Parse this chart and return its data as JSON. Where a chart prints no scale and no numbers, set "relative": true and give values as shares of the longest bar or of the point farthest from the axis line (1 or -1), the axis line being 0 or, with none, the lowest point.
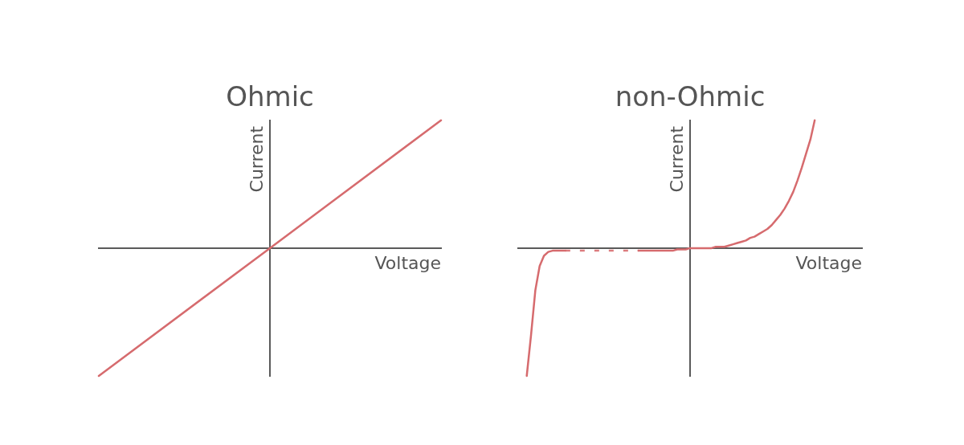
{
  "chart_data": [
    {
      "type": "line",
      "title": "Ohmic",
      "xlabel": "Voltage",
      "ylabel": "Current",
      "relative": true,
      "marker": "none",
      "categories": [
        null,
        null,
        null
      ],
      "values": [
        -1,
        0,
        1
      ],
      "color": "#d66b6e"
    },
    {
      "type": "line",
      "title": "non-Ohmic",
      "xlabel": "Voltage",
      "ylabel": "Current",
      "relative": true,
      "marker": "none",
      "categories": [
        null,
        null,
        null,
        null,
        null,
        null,
        null,
        null,
        null,
        null,
        null,
        null,
        null,
        null,
        null,
        null,
        null,
        null,
        null,
        null,
        null,
        null,
        null,
        null,
        null,
        null,
        null,
        null,
        null,
        null,
        null,
        null,
        null,
        null,
        null,
        null,
        null,
        null,
        null,
        null,
        null,
        null,
        null,
        null,
        null,
        null,
        null,
        null,
        null,
        null,
        null,
        null,
        null,
        null,
        null,
        null,
        null,
        null,
        null,
        null,
        null,
        null,
        null,
        null,
        null,
        null,
        null,
        null,
        null,
        null,
        null,
        null,
        null,
        null,
        null,
        null,
        null,
        null,
        null,
        null,
        null
      ],
      "series": [
        {
          "color": "#d66b6e",
          "line_style": "solid",
          "values": [
            null,
            null,
            -1,
            -0.68,
            -0.33,
            -0.14,
            -0.06,
            -0.03,
            -0.02,
            -0.02,
            -0.02,
            -0.02,
            null,
            null,
            null,
            null,
            null,
            null,
            null,
            null,
            null,
            null,
            null,
            null,
            null,
            null,
            null,
            null,
            -0.02,
            -0.02,
            -0.02,
            -0.02,
            -0.02,
            -0.02,
            -0.02,
            -0.02,
            -0.02,
            -0.01,
            -0.01,
            -0.01,
            0,
            0,
            0,
            0,
            0,
            0,
            0.01,
            0.01,
            0.01,
            0.02,
            0.03,
            0.04,
            0.05,
            0.06,
            0.08,
            0.09,
            0.11,
            0.13,
            0.15,
            0.18,
            0.22,
            0.26,
            0.31,
            0.37,
            0.44,
            0.53,
            0.63,
            0.74,
            0.85,
            1,
            null,
            null,
            null,
            null,
            null,
            null,
            null,
            null,
            null,
            null,
            null
          ]
        },
        {
          "color": "#dc7c7e",
          "line_style": "dashed",
          "values": [
            null,
            null,
            null,
            null,
            null,
            null,
            null,
            null,
            null,
            null,
            null,
            -0.02,
            -0.02,
            -0.02,
            -0.02,
            -0.02,
            -0.02,
            -0.02,
            -0.02,
            -0.02,
            -0.02,
            -0.02,
            -0.02,
            -0.02,
            -0.02,
            -0.02,
            -0.02,
            -0.02,
            -0.02,
            null,
            null,
            null,
            null,
            null,
            null,
            null,
            null,
            null,
            null,
            null,
            null,
            null,
            null,
            null,
            null,
            null,
            null,
            null,
            null,
            null,
            null,
            null,
            null,
            null,
            null,
            null,
            null,
            null,
            null,
            null,
            null,
            null,
            null,
            null,
            null,
            null,
            null,
            null,
            null,
            null,
            null,
            null,
            null,
            null,
            null,
            null,
            null,
            null,
            null,
            null,
            null
          ]
        }
      ]
    }
  ]
}
